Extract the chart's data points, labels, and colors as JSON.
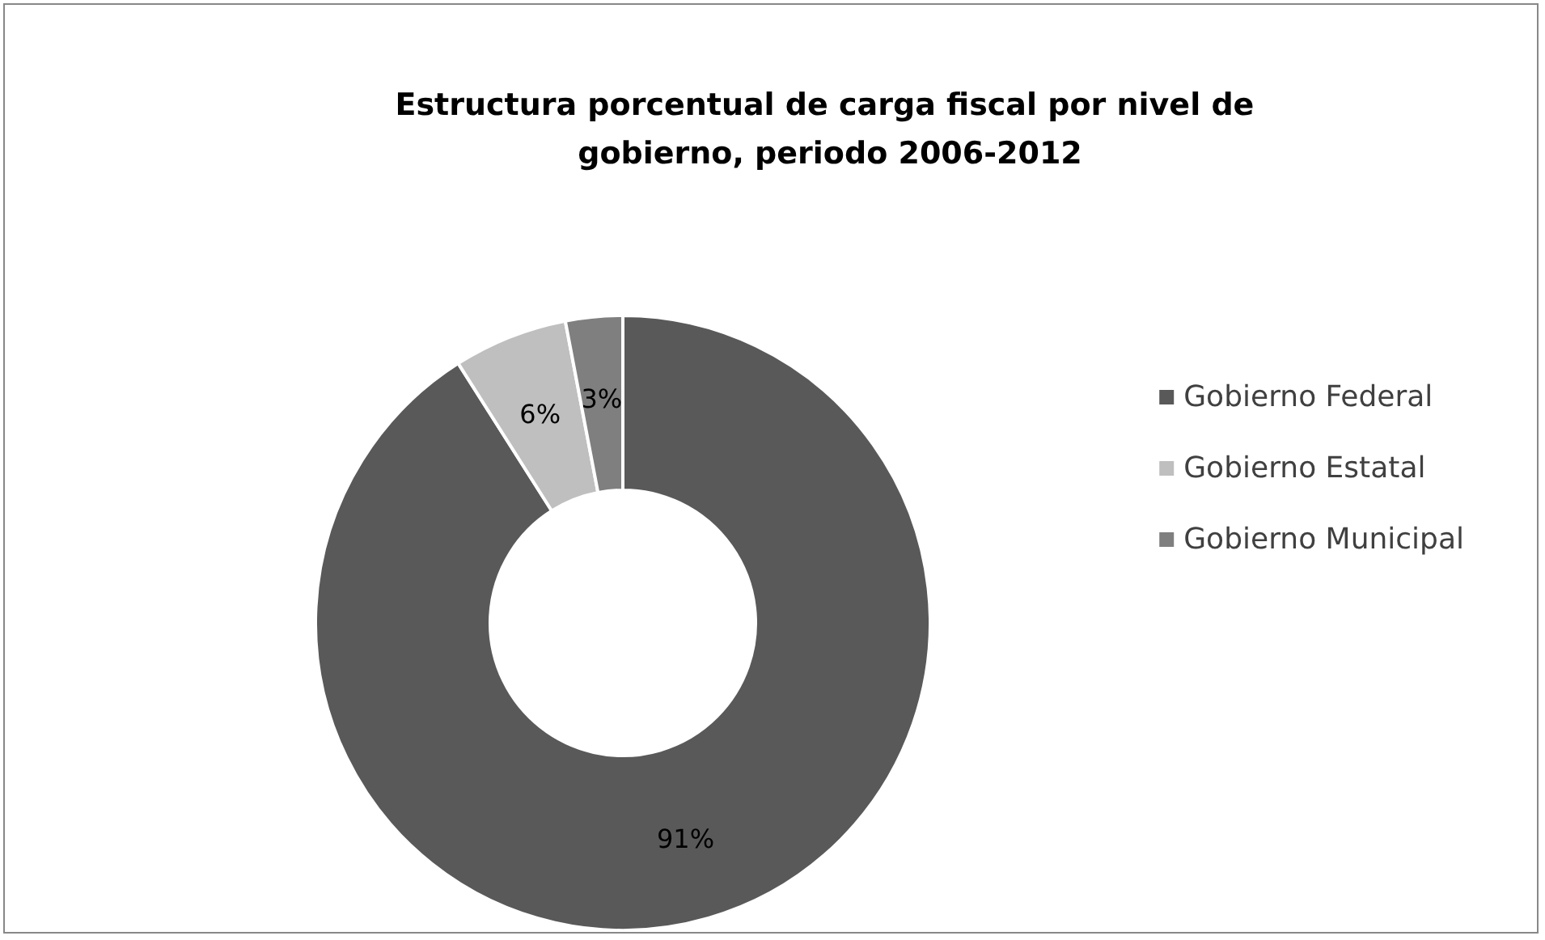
{
  "chart_data": {
    "type": "donut",
    "title": "Estructura porcentual de carga fiscal por nivel de gobierno, periodo 2006-2012",
    "categories": [
      "Gobierno Federal",
      "Gobierno Estatal",
      "Gobierno Municipal"
    ],
    "values": [
      91,
      6,
      3
    ],
    "colors": [
      "#595959",
      "#bfbfbf",
      "#7f7f7f"
    ],
    "value_labels": [
      "91%",
      "6%",
      "3%"
    ],
    "legend": "right"
  }
}
